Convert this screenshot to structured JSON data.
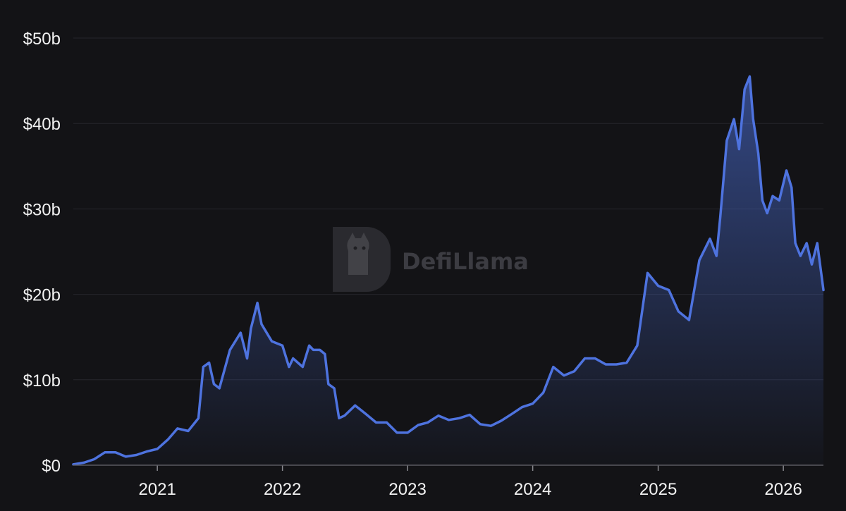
{
  "watermark": {
    "text": "DefiLlama",
    "icon": "llama-logo-icon"
  },
  "colors": {
    "background": "#131316",
    "line": "#4e73df",
    "grid": "#26262c",
    "text": "#f2f2f2",
    "watermark": "#5f5f66"
  },
  "chart_data": {
    "type": "area",
    "title": "",
    "xlabel": "",
    "ylabel": "",
    "grid": true,
    "legend": "none",
    "x_range": [
      "2020-05-01",
      "2026-04-28"
    ],
    "ylim": [
      0,
      50
    ],
    "y_unit": "billions USD",
    "y_ticks": [
      {
        "value": 0,
        "label": "$0"
      },
      {
        "value": 10,
        "label": "$10b"
      },
      {
        "value": 20,
        "label": "$20b"
      },
      {
        "value": 30,
        "label": "$30b"
      },
      {
        "value": 40,
        "label": "$40b"
      },
      {
        "value": 50,
        "label": "$50b"
      }
    ],
    "x_ticks": [
      {
        "value": "2021-01-01",
        "label": "2021"
      },
      {
        "value": "2022-01-01",
        "label": "2022"
      },
      {
        "value": "2023-01-01",
        "label": "2023"
      },
      {
        "value": "2024-01-01",
        "label": "2024"
      },
      {
        "value": "2025-01-01",
        "label": "2025"
      },
      {
        "value": "2026-01-01",
        "label": "2026"
      }
    ],
    "series": [
      {
        "points": [
          [
            "2020-05-01",
            0.1
          ],
          [
            "2020-06-01",
            0.3
          ],
          [
            "2020-07-01",
            0.7
          ],
          [
            "2020-08-01",
            1.5
          ],
          [
            "2020-09-01",
            1.5
          ],
          [
            "2020-10-01",
            1.0
          ],
          [
            "2020-11-01",
            1.2
          ],
          [
            "2020-12-01",
            1.6
          ],
          [
            "2021-01-01",
            1.9
          ],
          [
            "2021-02-01",
            3.0
          ],
          [
            "2021-03-01",
            4.3
          ],
          [
            "2021-04-01",
            4.0
          ],
          [
            "2021-05-01",
            5.5
          ],
          [
            "2021-05-15",
            11.5
          ],
          [
            "2021-06-01",
            12.0
          ],
          [
            "2021-06-15",
            9.5
          ],
          [
            "2021-07-01",
            9.0
          ],
          [
            "2021-08-01",
            13.5
          ],
          [
            "2021-09-01",
            15.5
          ],
          [
            "2021-09-20",
            12.5
          ],
          [
            "2021-10-01",
            16.0
          ],
          [
            "2021-10-20",
            19.0
          ],
          [
            "2021-11-01",
            16.5
          ],
          [
            "2021-12-01",
            14.5
          ],
          [
            "2022-01-01",
            14.0
          ],
          [
            "2022-01-20",
            11.5
          ],
          [
            "2022-02-01",
            12.5
          ],
          [
            "2022-02-15",
            12.0
          ],
          [
            "2022-03-01",
            11.5
          ],
          [
            "2022-03-20",
            14.0
          ],
          [
            "2022-04-01",
            13.5
          ],
          [
            "2022-04-20",
            13.5
          ],
          [
            "2022-05-05",
            13.0
          ],
          [
            "2022-05-15",
            9.5
          ],
          [
            "2022-06-01",
            9.0
          ],
          [
            "2022-06-15",
            5.5
          ],
          [
            "2022-07-01",
            5.8
          ],
          [
            "2022-08-01",
            7.0
          ],
          [
            "2022-09-01",
            6.0
          ],
          [
            "2022-10-01",
            5.0
          ],
          [
            "2022-11-01",
            5.0
          ],
          [
            "2022-12-01",
            3.8
          ],
          [
            "2023-01-01",
            3.8
          ],
          [
            "2023-02-01",
            4.7
          ],
          [
            "2023-03-01",
            5.0
          ],
          [
            "2023-04-01",
            5.8
          ],
          [
            "2023-05-01",
            5.3
          ],
          [
            "2023-06-01",
            5.5
          ],
          [
            "2023-07-01",
            5.9
          ],
          [
            "2023-08-01",
            4.8
          ],
          [
            "2023-09-01",
            4.6
          ],
          [
            "2023-10-01",
            5.2
          ],
          [
            "2023-11-01",
            6.0
          ],
          [
            "2023-12-01",
            6.8
          ],
          [
            "2024-01-01",
            7.2
          ],
          [
            "2024-02-01",
            8.5
          ],
          [
            "2024-03-01",
            11.5
          ],
          [
            "2024-04-01",
            10.5
          ],
          [
            "2024-05-01",
            11.0
          ],
          [
            "2024-06-01",
            12.5
          ],
          [
            "2024-07-01",
            12.5
          ],
          [
            "2024-08-01",
            11.8
          ],
          [
            "2024-09-01",
            11.8
          ],
          [
            "2024-10-01",
            12.0
          ],
          [
            "2024-11-01",
            14.0
          ],
          [
            "2024-12-01",
            22.5
          ],
          [
            "2025-01-01",
            21.0
          ],
          [
            "2025-02-01",
            20.5
          ],
          [
            "2025-03-01",
            18.0
          ],
          [
            "2025-04-01",
            17.0
          ],
          [
            "2025-05-01",
            24.0
          ],
          [
            "2025-06-01",
            26.5
          ],
          [
            "2025-06-20",
            24.5
          ],
          [
            "2025-07-01",
            29.0
          ],
          [
            "2025-07-20",
            38.0
          ],
          [
            "2025-08-10",
            40.5
          ],
          [
            "2025-08-25",
            37.0
          ],
          [
            "2025-09-10",
            44.0
          ],
          [
            "2025-09-25",
            45.5
          ],
          [
            "2025-10-05",
            40.5
          ],
          [
            "2025-10-20",
            36.5
          ],
          [
            "2025-11-01",
            31.0
          ],
          [
            "2025-11-15",
            29.5
          ],
          [
            "2025-12-01",
            31.5
          ],
          [
            "2025-12-20",
            31.0
          ],
          [
            "2026-01-10",
            34.5
          ],
          [
            "2026-01-25",
            32.5
          ],
          [
            "2026-02-05",
            26.0
          ],
          [
            "2026-02-20",
            24.5
          ],
          [
            "2026-03-10",
            26.0
          ],
          [
            "2026-03-25",
            23.5
          ],
          [
            "2026-04-10",
            26.0
          ],
          [
            "2026-04-28",
            20.5
          ]
        ]
      }
    ]
  }
}
